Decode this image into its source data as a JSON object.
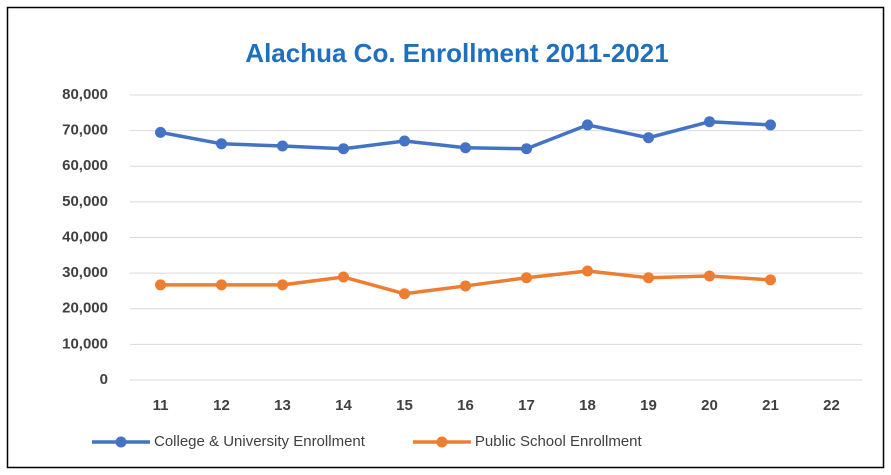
{
  "chart_data": {
    "type": "line",
    "title": "Alachua Co. Enrollment 2011-2021",
    "categories": [
      "11",
      "12",
      "13",
      "14",
      "15",
      "16",
      "17",
      "18",
      "19",
      "20",
      "21",
      "22"
    ],
    "series": [
      {
        "name": "College & University Enrollment",
        "color": "#4472c4",
        "values": [
          69500,
          66300,
          65700,
          64900,
          67100,
          65200,
          64900,
          71600,
          68000,
          72500,
          71600,
          null
        ]
      },
      {
        "name": "Public School Enrollment",
        "color": "#ed7d31",
        "values": [
          26700,
          26700,
          26700,
          28900,
          24200,
          26400,
          28700,
          30600,
          28700,
          29200,
          28100,
          null
        ]
      }
    ],
    "ylim": [
      0,
      80000
    ],
    "yticks": [
      {
        "value": 0,
        "label": "0"
      },
      {
        "value": 10000,
        "label": "10,000"
      },
      {
        "value": 20000,
        "label": "20,000"
      },
      {
        "value": 30000,
        "label": "30,000"
      },
      {
        "value": 40000,
        "label": "40,000"
      },
      {
        "value": 50000,
        "label": "50,000"
      },
      {
        "value": 60000,
        "label": "60,000"
      },
      {
        "value": 70000,
        "label": "70,000"
      },
      {
        "value": 80000,
        "label": "80,000"
      }
    ],
    "grid": true,
    "legend": "bottom"
  }
}
